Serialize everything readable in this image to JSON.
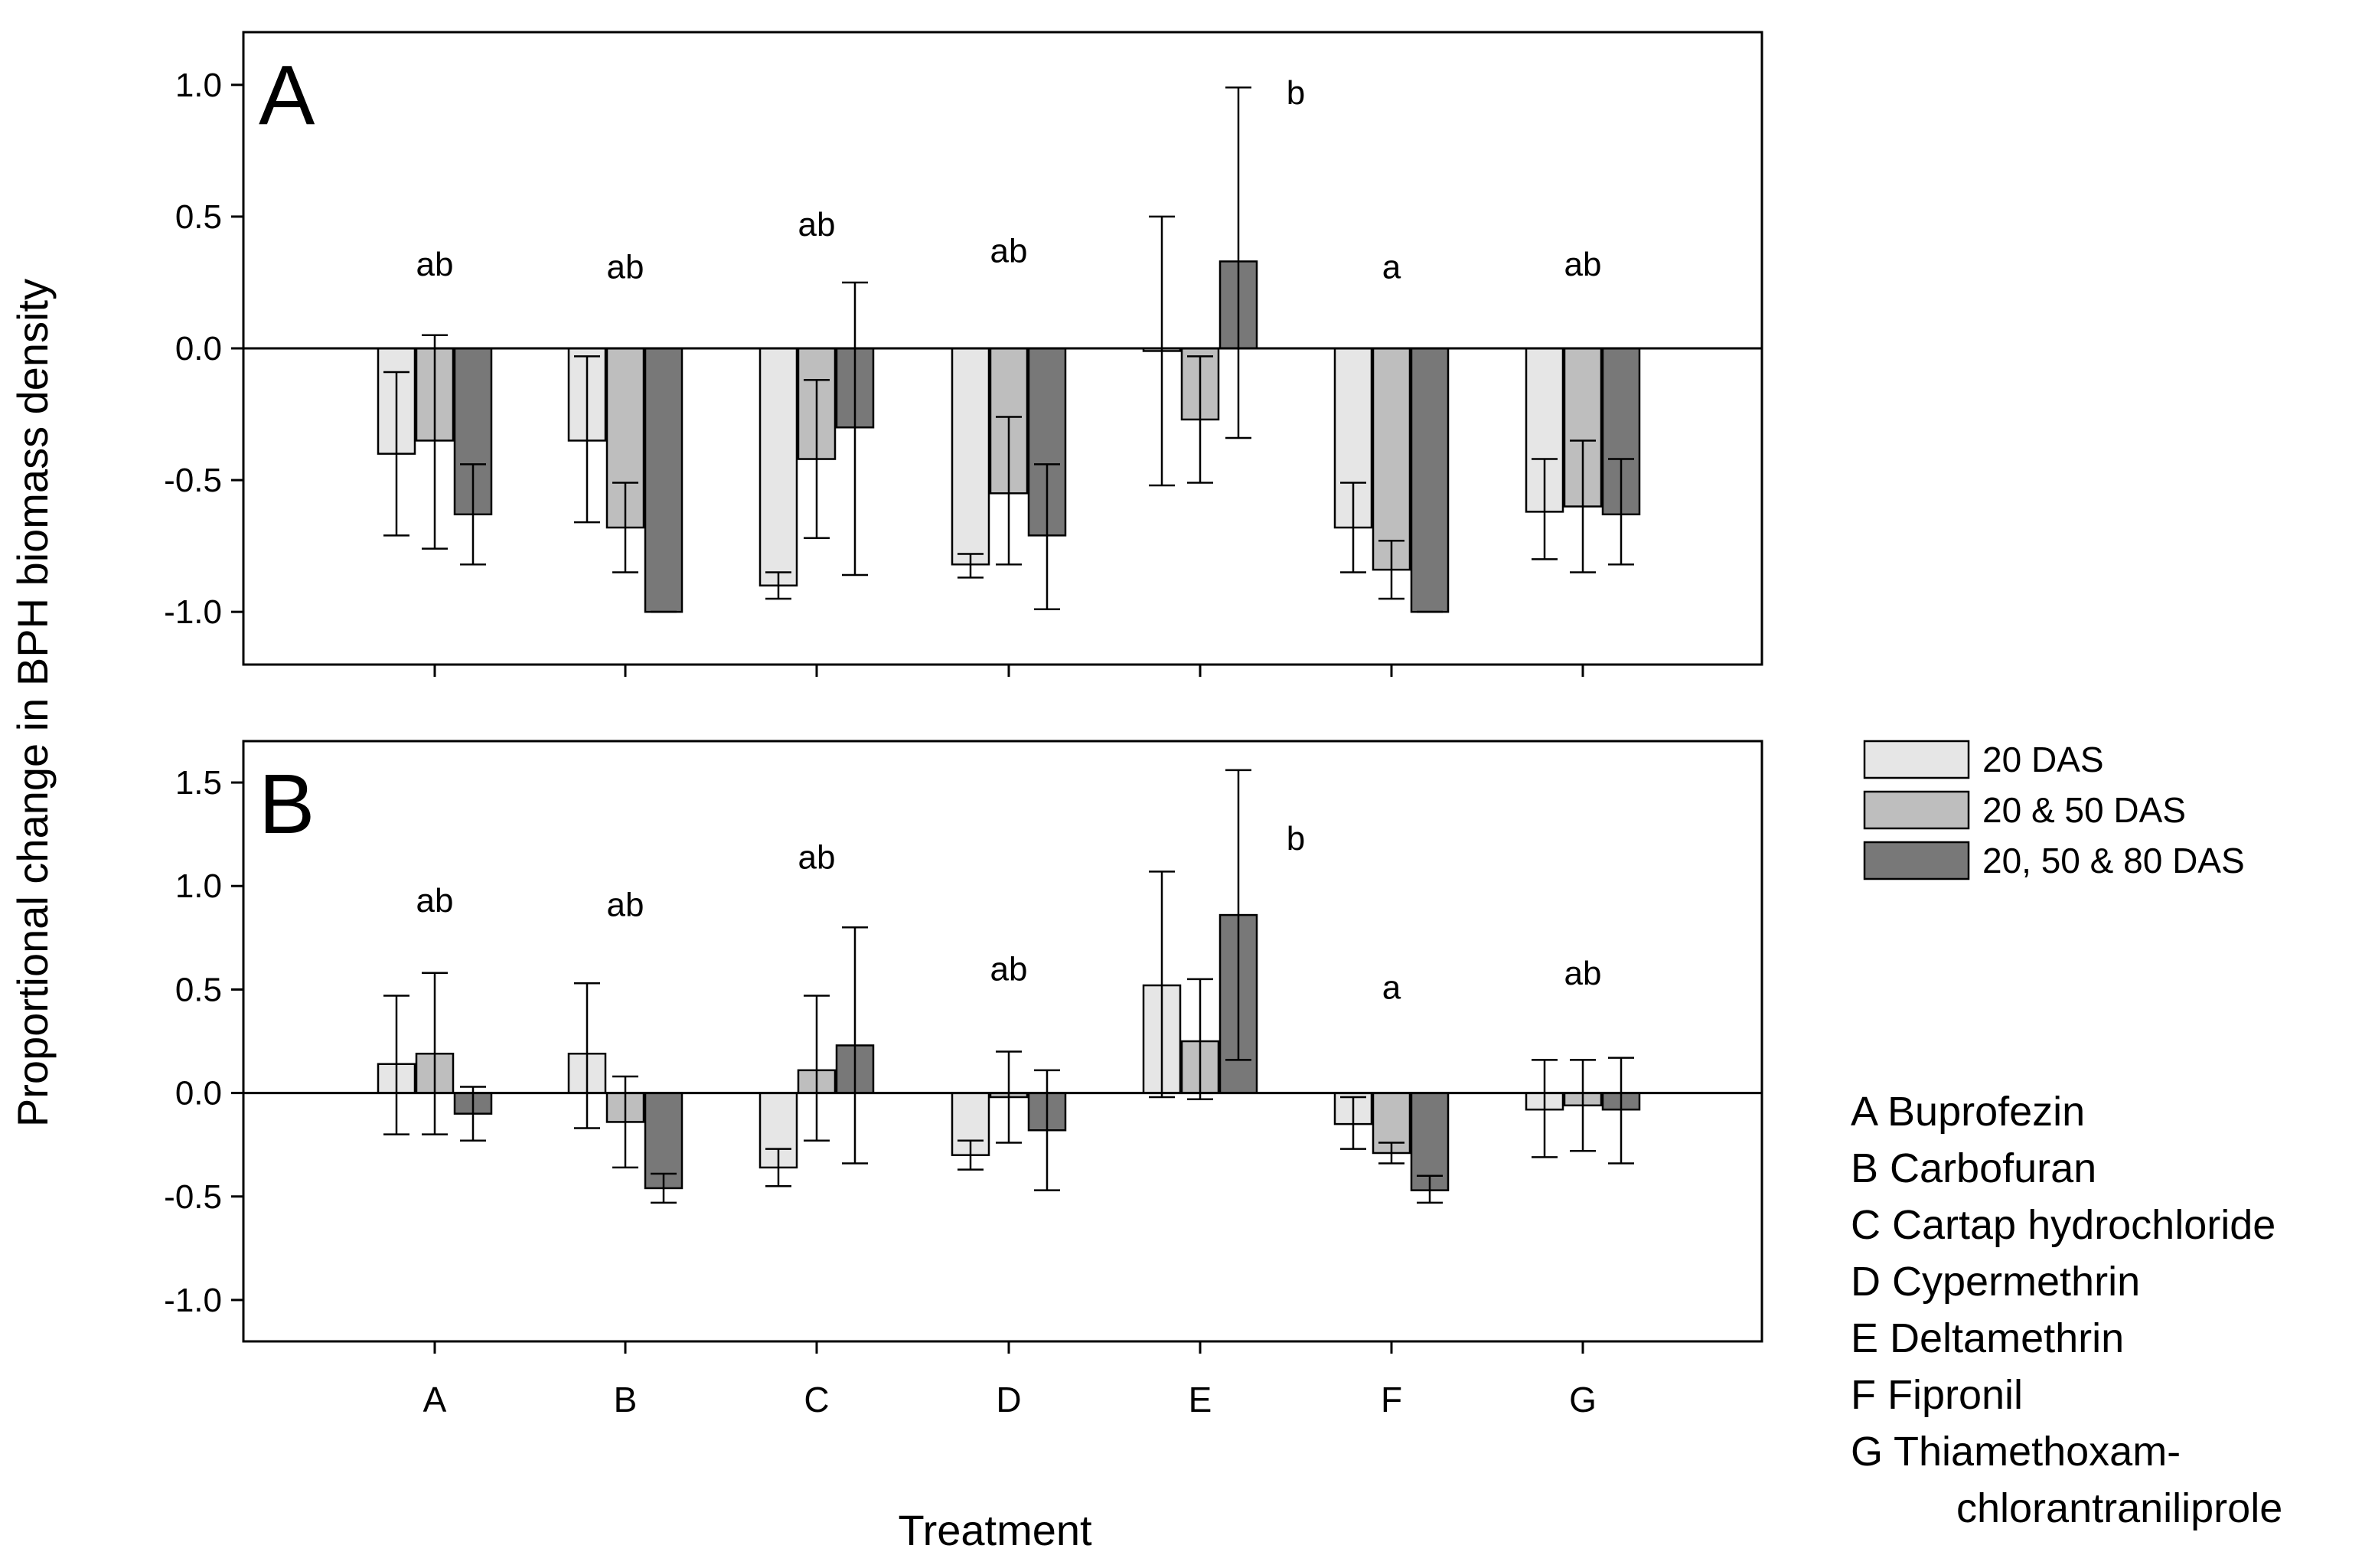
{
  "ylabel": "Proportional change in BPH biomass density",
  "xlabel": "Treatment",
  "legend": {
    "entries": [
      {
        "label": "20 DAS",
        "color": "#e6e6e6"
      },
      {
        "label": "20 & 50 DAS",
        "color": "#bebebe"
      },
      {
        "label": "20, 50 & 80 DAS",
        "color": "#787878"
      }
    ]
  },
  "treatment_key": [
    "A Buprofezin",
    "B Carbofuran",
    "C Cartap hydrochloride",
    "D Cypermethrin",
    "E Deltamethrin",
    "F Fipronil",
    "G Thiamethoxam-",
    "chlorantraniliprole"
  ],
  "chart_data": [
    {
      "type": "bar",
      "panel": "A",
      "categories": [
        "A",
        "B",
        "C",
        "D",
        "E",
        "F",
        "G"
      ],
      "ylim": [
        -1.2,
        1.2
      ],
      "yticks": [
        1.0,
        0.5,
        0.0,
        -0.5,
        -1.0
      ],
      "ytick_labels": [
        "1.0",
        "0.5",
        "0.0",
        "-0.5",
        "-1.0"
      ],
      "significance": [
        "ab",
        "ab",
        "ab",
        "ab",
        "b",
        "a",
        "ab"
      ],
      "significance_y": [
        0.32,
        0.31,
        0.47,
        0.37,
        0.97,
        0.31,
        0.32
      ],
      "series": [
        {
          "name": "20 DAS",
          "values": [
            -0.4,
            -0.35,
            -0.9,
            -0.82,
            -0.01,
            -0.68,
            -0.62
          ],
          "err_low": [
            -0.71,
            -0.66,
            -0.95,
            -0.87,
            -0.52,
            -0.85,
            -0.8
          ],
          "err_high": [
            -0.09,
            -0.03,
            -0.85,
            -0.78,
            0.5,
            -0.51,
            -0.42
          ]
        },
        {
          "name": "20 & 50 DAS",
          "values": [
            -0.35,
            -0.68,
            -0.42,
            -0.55,
            -0.27,
            -0.84,
            -0.6
          ],
          "err_low": [
            -0.76,
            -0.85,
            -0.72,
            -0.82,
            -0.51,
            -0.95,
            -0.85
          ],
          "err_high": [
            0.05,
            -0.51,
            -0.12,
            -0.26,
            -0.03,
            -0.73,
            -0.35
          ]
        },
        {
          "name": "20, 50 & 80 DAS",
          "values": [
            -0.63,
            -1.0,
            -0.3,
            -0.71,
            0.33,
            -1.0,
            -0.63
          ],
          "err_low": [
            -0.82,
            -1.0,
            -0.86,
            -0.99,
            -0.34,
            -1.0,
            -0.82
          ],
          "err_high": [
            -0.44,
            -1.0,
            0.25,
            -0.44,
            0.99,
            -1.0,
            -0.42
          ]
        }
      ]
    },
    {
      "type": "bar",
      "panel": "B",
      "categories": [
        "A",
        "B",
        "C",
        "D",
        "E",
        "F",
        "G"
      ],
      "ylim": [
        -1.2,
        1.7
      ],
      "yticks": [
        1.5,
        1.0,
        0.5,
        0.0,
        -0.5,
        -1.0
      ],
      "ytick_labels": [
        "1.5",
        "1.0",
        "0.5",
        "0.0",
        "-0.5",
        "-1.0"
      ],
      "significance": [
        "ab",
        "ab",
        "ab",
        "ab",
        "b",
        "a",
        "ab"
      ],
      "significance_y": [
        0.93,
        0.91,
        1.14,
        0.6,
        1.23,
        0.51,
        0.58
      ],
      "series": [
        {
          "name": "20 DAS",
          "values": [
            0.14,
            0.19,
            -0.36,
            -0.3,
            0.52,
            -0.15,
            -0.08
          ],
          "err_low": [
            -0.2,
            -0.17,
            -0.45,
            -0.37,
            -0.02,
            -0.27,
            -0.31
          ],
          "err_high": [
            0.47,
            0.53,
            -0.27,
            -0.23,
            1.07,
            -0.02,
            0.16
          ]
        },
        {
          "name": "20 & 50 DAS",
          "values": [
            0.19,
            -0.14,
            0.11,
            -0.02,
            0.25,
            -0.29,
            -0.06
          ],
          "err_low": [
            -0.2,
            -0.36,
            -0.23,
            -0.24,
            -0.03,
            -0.34,
            -0.28
          ],
          "err_high": [
            0.58,
            0.08,
            0.47,
            0.2,
            0.55,
            -0.24,
            0.16
          ]
        },
        {
          "name": "20, 50 & 80 DAS",
          "values": [
            -0.1,
            -0.46,
            0.23,
            -0.18,
            0.86,
            -0.47,
            -0.08
          ],
          "err_low": [
            -0.23,
            -0.53,
            -0.34,
            -0.47,
            0.16,
            -0.53,
            -0.34
          ],
          "err_high": [
            0.03,
            -0.39,
            0.8,
            0.11,
            1.56,
            -0.4,
            0.17
          ]
        }
      ]
    }
  ]
}
